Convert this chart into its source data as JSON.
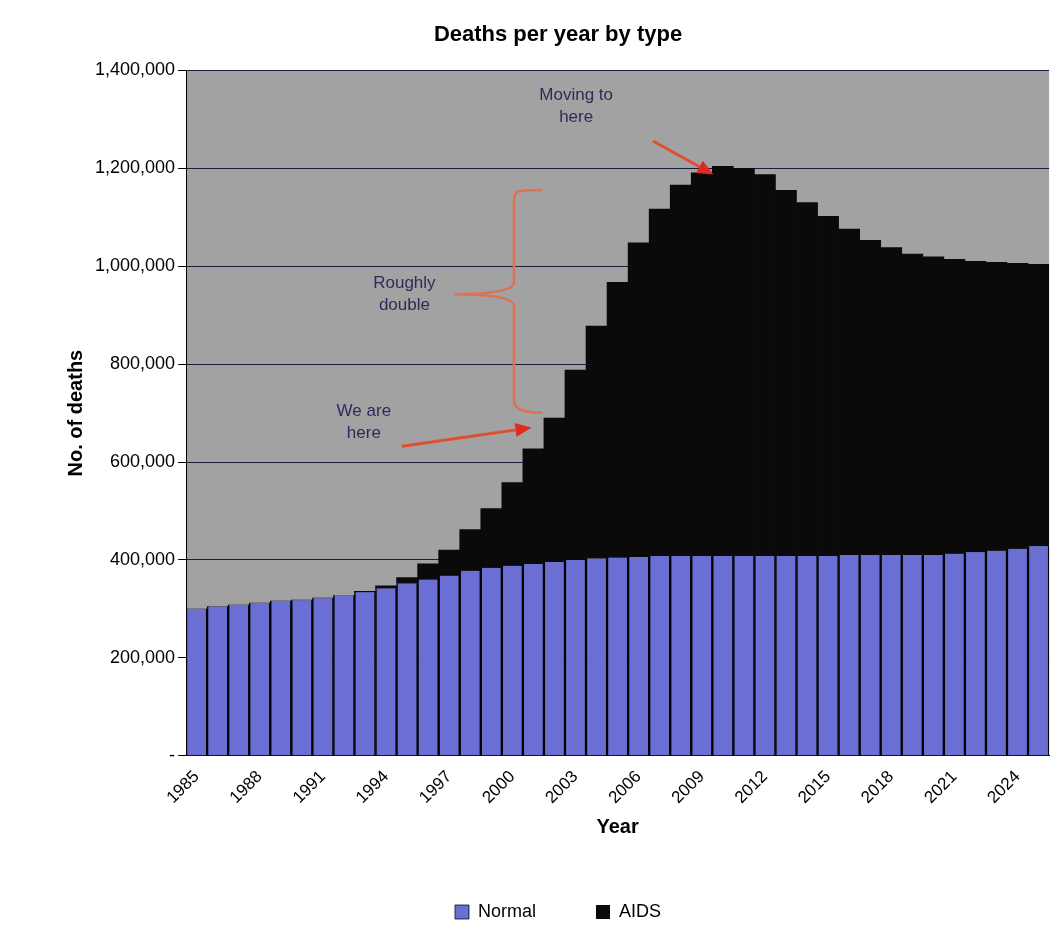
{
  "chart_data": {
    "type": "bar",
    "stacked": true,
    "title": "Deaths per year by type",
    "xlabel": "Year",
    "ylabel": "No. of deaths",
    "categories": [
      "1985",
      null,
      null,
      "1988",
      null,
      null,
      "1991",
      null,
      null,
      "1994",
      null,
      null,
      "1997",
      null,
      null,
      "2000",
      null,
      null,
      "2003",
      null,
      null,
      "2006",
      null,
      null,
      "2009",
      null,
      null,
      "2012",
      null,
      null,
      "2015",
      null,
      null,
      "2018",
      null,
      null,
      "2021",
      null,
      null,
      "2024",
      null
    ],
    "series": [
      {
        "name": "Normal",
        "color": "#6b6fd4",
        "values": [
          300000,
          305000,
          308000,
          312000,
          316000,
          318000,
          322000,
          328000,
          334000,
          342000,
          352000,
          360000,
          368000,
          378000,
          384000,
          388000,
          392000,
          396000,
          400000,
          403000,
          405000,
          406000,
          408000,
          408000,
          408000,
          408000,
          408000,
          408000,
          408000,
          408000,
          408000,
          410000,
          410000,
          410000,
          410000,
          410000,
          413000,
          416000,
          419000,
          423000,
          428000
        ]
      },
      {
        "name": "AIDS",
        "color": "#0a0a0a",
        "values": [
          0,
          0,
          0,
          0,
          0,
          0,
          0,
          0,
          2000,
          5000,
          12000,
          32000,
          52000,
          84000,
          121000,
          170000,
          235000,
          294000,
          388000,
          475000,
          562000,
          642000,
          709000,
          758000,
          783000,
          796000,
          792000,
          779000,
          747000,
          722000,
          694000,
          666000,
          643000,
          628000,
          615000,
          609000,
          601000,
          594000,
          589000,
          583000,
          576000
        ]
      }
    ],
    "ylim": [
      0,
      1400000
    ],
    "yticks": [
      {
        "value": 0,
        "label": "-"
      },
      {
        "value": 200000,
        "label": "200,000"
      },
      {
        "value": 400000,
        "label": "400,000"
      },
      {
        "value": 600000,
        "label": "600,000"
      },
      {
        "value": 800000,
        "label": "800,000"
      },
      {
        "value": 1000000,
        "label": "1,000,000"
      },
      {
        "value": 1200000,
        "label": "1,200,000"
      },
      {
        "value": 1400000,
        "label": "1,400,000"
      }
    ],
    "grid": "y",
    "legend": "bottom",
    "annotations": [
      "Moving to here",
      "Roughly double",
      "We are here"
    ]
  }
}
